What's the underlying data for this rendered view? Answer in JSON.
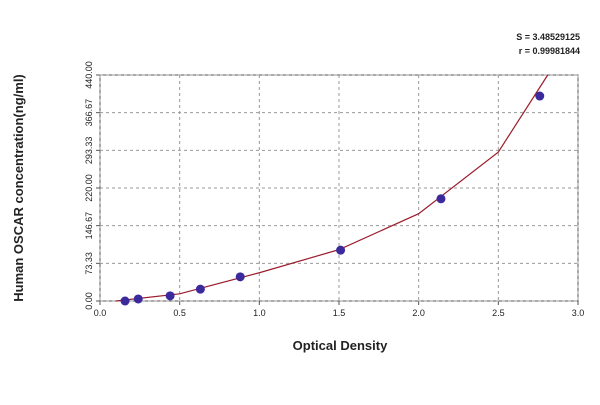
{
  "chart_data": {
    "type": "scatter",
    "annotations": [
      "S = 3.48529125",
      "r = 0.99981844"
    ],
    "xlabel": "Optical Density",
    "ylabel": "Human OSCAR concentration(ng/ml)",
    "xlim": [
      0,
      3
    ],
    "ylim": [
      0,
      440
    ],
    "xticks": [
      {
        "value": 0,
        "label": "0.0"
      },
      0.5,
      {
        "value": 1,
        "label": "1.0"
      },
      1.5,
      {
        "value": 2,
        "label": "2.0"
      },
      2.5,
      {
        "value": 3,
        "label": "3.0"
      }
    ],
    "yticks": [
      {
        "value": 0,
        "label": "0.00"
      },
      {
        "value": 73.33,
        "label": "73.33"
      },
      {
        "value": 146.67,
        "label": "146.67"
      },
      {
        "value": 220,
        "label": "220.00"
      },
      {
        "value": 293.33,
        "label": "293.33"
      },
      {
        "value": 366.67,
        "label": "366.67"
      },
      {
        "value": 440,
        "label": "440.00"
      }
    ],
    "grid": true,
    "series": [
      {
        "mode": "markers",
        "color": "#3b2a9c",
        "x": [
          0.157,
          0.24,
          0.44,
          0.63,
          0.88,
          1.51,
          2.14,
          2.76
        ],
        "values": [
          0,
          4,
          10,
          23,
          47,
          99,
          199,
          399
        ]
      },
      {
        "mode": "line",
        "color": "#9b1c2c",
        "x": [
          0.1,
          0.5,
          1.0,
          1.5,
          2.0,
          2.5,
          2.81
        ],
        "values": [
          0,
          14,
          55,
          100,
          170,
          290,
          440
        ]
      }
    ]
  }
}
